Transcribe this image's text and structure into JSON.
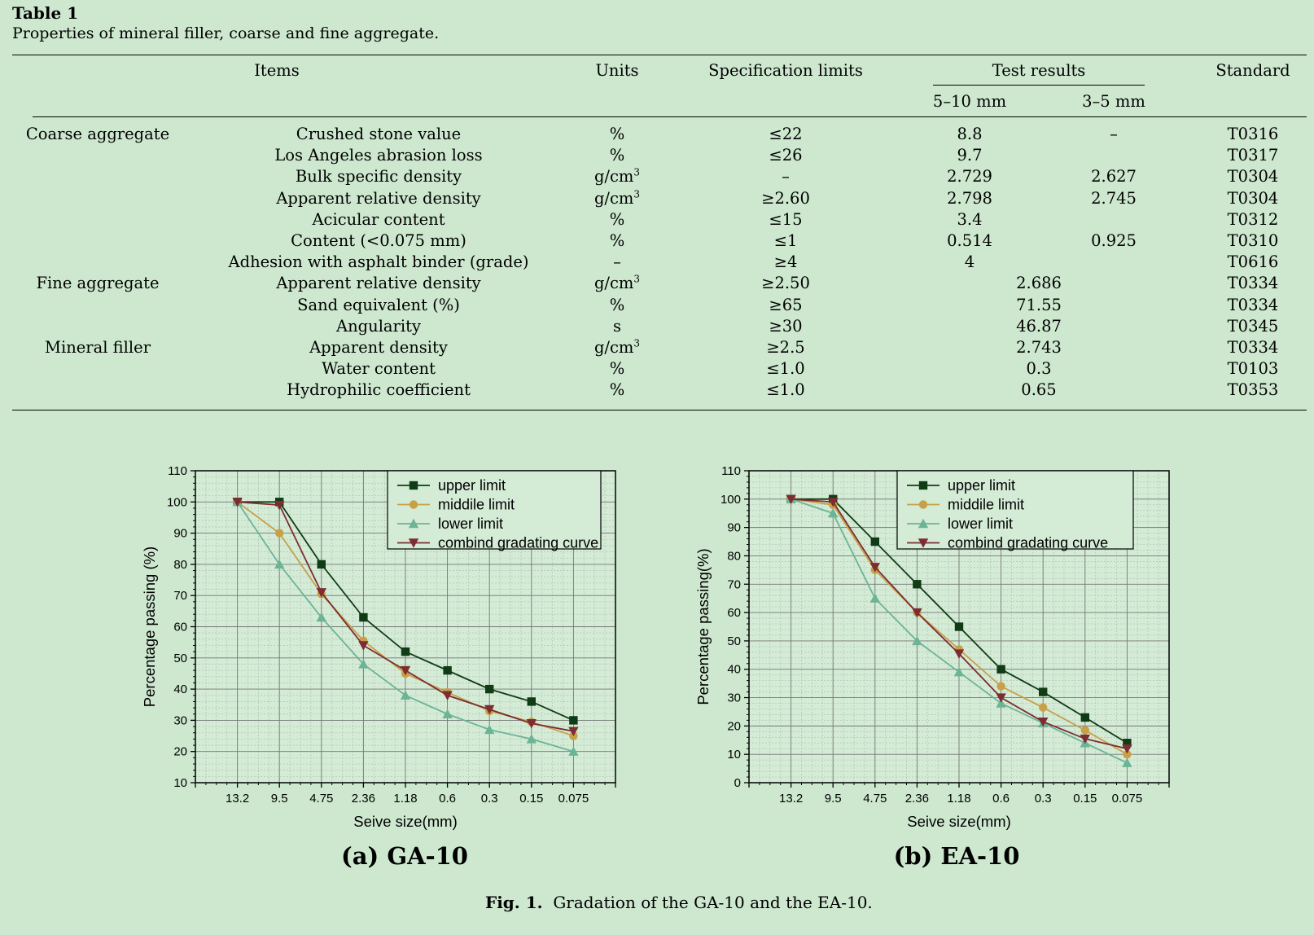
{
  "table": {
    "label": "Table 1",
    "caption": "Properties of mineral filler, coarse and fine aggregate.",
    "headers": {
      "items": "Items",
      "units": "Units",
      "spec": "Specification limits",
      "test": "Test results",
      "sub1": "5–10 mm",
      "sub2": "3–5 mm",
      "standard": "Standard"
    },
    "rows": [
      {
        "group": "Coarse aggregate",
        "item": "Crushed stone value",
        "unit": "%",
        "sup": "",
        "spec": "≤22",
        "r1": "8.8",
        "r2": "–",
        "merged": "",
        "std": "T0316"
      },
      {
        "group": "",
        "item": "Los Angeles abrasion loss",
        "unit": "%",
        "sup": "",
        "spec": "≤26",
        "r1": "9.7",
        "r2": "",
        "merged": "",
        "std": "T0317"
      },
      {
        "group": "",
        "item": "Bulk specific density",
        "unit": "g/cm",
        "sup": "3",
        "spec": "–",
        "r1": "2.729",
        "r2": "2.627",
        "merged": "",
        "std": "T0304"
      },
      {
        "group": "",
        "item": "Apparent relative density",
        "unit": "g/cm",
        "sup": "3",
        "spec": "≥2.60",
        "r1": "2.798",
        "r2": "2.745",
        "merged": "",
        "std": "T0304"
      },
      {
        "group": "",
        "item": "Acicular content",
        "unit": "%",
        "sup": "",
        "spec": "≤15",
        "r1": "3.4",
        "r2": "",
        "merged": "",
        "std": "T0312"
      },
      {
        "group": "",
        "item": "Content (<0.075 mm)",
        "unit": "%",
        "sup": "",
        "spec": "≤1",
        "r1": "0.514",
        "r2": "0.925",
        "merged": "",
        "std": "T0310"
      },
      {
        "group": "",
        "item": "Adhesion with asphalt binder (grade)",
        "unit": "–",
        "sup": "",
        "spec": "≥4",
        "r1": "4",
        "r2": "",
        "merged": "",
        "std": "T0616"
      },
      {
        "group": "Fine aggregate",
        "item": "Apparent relative density",
        "unit": "g/cm",
        "sup": "3",
        "spec": "≥2.50",
        "r1": "",
        "r2": "",
        "merged": "2.686",
        "std": "T0334"
      },
      {
        "group": "",
        "item": "Sand equivalent (%)",
        "unit": "%",
        "sup": "",
        "spec": "≥65",
        "r1": "",
        "r2": "",
        "merged": "71.55",
        "std": "T0334"
      },
      {
        "group": "",
        "item": "Angularity",
        "unit": "s",
        "sup": "",
        "spec": "≥30",
        "r1": "",
        "r2": "",
        "merged": "46.87",
        "std": "T0345"
      },
      {
        "group": "Mineral filler",
        "item": "Apparent density",
        "unit": "g/cm",
        "sup": "3",
        "spec": "≥2.5",
        "r1": "",
        "r2": "",
        "merged": "2.743",
        "std": "T0334"
      },
      {
        "group": "",
        "item": "Water content",
        "unit": "%",
        "sup": "",
        "spec": "≤1.0",
        "r1": "",
        "r2": "",
        "merged": "0.3",
        "std": "T0103"
      },
      {
        "group": "",
        "item": "Hydrophilic coefficient",
        "unit": "%",
        "sup": "",
        "spec": "≤1.0",
        "r1": "",
        "r2": "",
        "merged": "0.65",
        "std": "T0353"
      }
    ]
  },
  "colors": {
    "upper": "#0f3c14",
    "middle": "#c8a048",
    "lower": "#6cb496",
    "combined": "#7c2d32",
    "plot_bg": "#d4ebd6",
    "grid_major": "#777777",
    "grid_minor": "#b4c8b6"
  },
  "chart_data": [
    {
      "type": "line",
      "title": "(a) GA-10",
      "xlabel": "Seive size(mm)",
      "ylabel": "Percentage passing (%)",
      "categories": [
        "13.2",
        "9.5",
        "4.75",
        "2.36",
        "1.18",
        "0.6",
        "0.3",
        "0.15",
        "0.075"
      ],
      "ylim": [
        10,
        110
      ],
      "yticks": [
        10,
        20,
        30,
        40,
        50,
        60,
        70,
        80,
        90,
        100,
        110
      ],
      "grid": true,
      "legend": "top-right",
      "series": [
        {
          "name": "upper limit",
          "marker": "square",
          "values": [
            100,
            100,
            80,
            63,
            52,
            46,
            40,
            36,
            30
          ]
        },
        {
          "name": "middile limit",
          "marker": "circle",
          "values": [
            100,
            90,
            70.5,
            55.5,
            45,
            39,
            33,
            29.5,
            25
          ]
        },
        {
          "name": "lower limit",
          "marker": "triangle-up",
          "values": [
            100,
            80,
            63,
            48,
            38,
            32,
            27,
            24,
            20
          ]
        },
        {
          "name": "combind gradating curve",
          "marker": "triangle-down",
          "values": [
            100,
            99,
            71,
            54,
            46,
            38,
            33.5,
            29,
            26.5
          ]
        }
      ]
    },
    {
      "type": "line",
      "title": "(b) EA-10",
      "xlabel": "Seive size(mm)",
      "ylabel": "Percentage passing(%)",
      "categories": [
        "13.2",
        "9.5",
        "4.75",
        "2.36",
        "1.18",
        "0.6",
        "0.3",
        "0.15",
        "0.075"
      ],
      "ylim": [
        0,
        110
      ],
      "yticks": [
        0,
        10,
        20,
        30,
        40,
        50,
        60,
        70,
        80,
        90,
        100,
        110
      ],
      "grid": true,
      "legend": "top-right",
      "series": [
        {
          "name": "upper limit",
          "marker": "square",
          "values": [
            100,
            100,
            85,
            70,
            55,
            40,
            32,
            23,
            14
          ]
        },
        {
          "name": "middile limit",
          "marker": "circle",
          "values": [
            100,
            98,
            75,
            60,
            47,
            34,
            26.5,
            18.5,
            10
          ]
        },
        {
          "name": "lower limit",
          "marker": "triangle-up",
          "values": [
            100,
            95,
            65,
            50,
            39,
            28,
            21,
            14,
            7
          ]
        },
        {
          "name": "combind gradating curve",
          "marker": "triangle-down",
          "values": [
            100,
            99,
            76,
            60,
            45.5,
            30,
            21.5,
            15.5,
            12
          ]
        }
      ]
    }
  ],
  "figure": {
    "caption_label": "Fig. 1.",
    "caption_text": "Gradation of the GA-10 and the EA-10."
  }
}
